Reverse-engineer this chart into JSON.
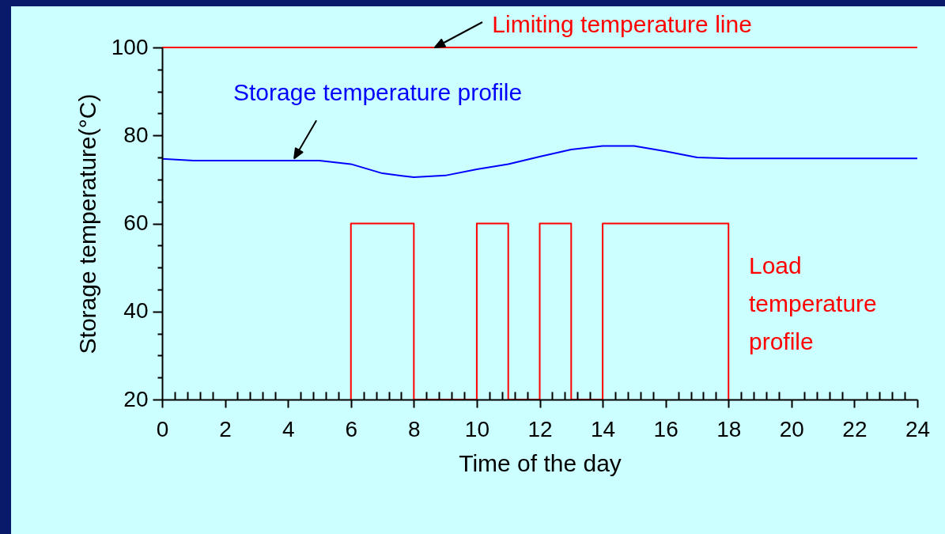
{
  "chart_data": {
    "type": "line",
    "xlabel": "Time of the day",
    "ylabel": "Storage temperature(°C)",
    "xlim": [
      0,
      24
    ],
    "ylim": [
      20,
      100
    ],
    "xticks": [
      0,
      {
        "value": 0.4,
        "label": null
      },
      {
        "value": 0.8,
        "label": null
      },
      {
        "value": 1.2,
        "label": null
      },
      {
        "value": 1.6,
        "label": null
      },
      2,
      {
        "value": 2.4,
        "label": null
      },
      {
        "value": 2.8,
        "label": null
      },
      {
        "value": 3.2,
        "label": null
      },
      {
        "value": 3.6,
        "label": null
      },
      4,
      {
        "value": 4.4,
        "label": null
      },
      {
        "value": 4.8,
        "label": null
      },
      {
        "value": 5.2,
        "label": null
      },
      {
        "value": 5.6,
        "label": null
      },
      6,
      {
        "value": 6.4,
        "label": null
      },
      {
        "value": 6.8,
        "label": null
      },
      {
        "value": 7.2,
        "label": null
      },
      {
        "value": 7.6,
        "label": null
      },
      8,
      {
        "value": 8.4,
        "label": null
      },
      {
        "value": 8.8,
        "label": null
      },
      {
        "value": 9.2,
        "label": null
      },
      {
        "value": 9.6,
        "label": null
      },
      10,
      {
        "value": 10.4,
        "label": null
      },
      {
        "value": 10.8,
        "label": null
      },
      {
        "value": 11.2,
        "label": null
      },
      {
        "value": 11.6,
        "label": null
      },
      12,
      {
        "value": 12.4,
        "label": null
      },
      {
        "value": 12.8,
        "label": null
      },
      {
        "value": 13.2,
        "label": null
      },
      {
        "value": 13.6,
        "label": null
      },
      14,
      {
        "value": 14.4,
        "label": null
      },
      {
        "value": 14.8,
        "label": null
      },
      {
        "value": 15.2,
        "label": null
      },
      {
        "value": 15.6,
        "label": null
      },
      16,
      {
        "value": 16.4,
        "label": null
      },
      {
        "value": 16.8,
        "label": null
      },
      {
        "value": 17.2,
        "label": null
      },
      {
        "value": 17.6,
        "label": null
      },
      18,
      {
        "value": 18.4,
        "label": null
      },
      {
        "value": 18.8,
        "label": null
      },
      {
        "value": 19.2,
        "label": null
      },
      {
        "value": 19.6,
        "label": null
      },
      20,
      {
        "value": 20.4,
        "label": null
      },
      {
        "value": 20.8,
        "label": null
      },
      {
        "value": 21.2,
        "label": null
      },
      {
        "value": 21.6,
        "label": null
      },
      22,
      {
        "value": 22.4,
        "label": null
      },
      {
        "value": 22.8,
        "label": null
      },
      {
        "value": 23.2,
        "label": null
      },
      {
        "value": 23.6,
        "label": null
      },
      24
    ],
    "yticks": [
      20,
      {
        "value": 25,
        "label": null
      },
      {
        "value": 30,
        "label": null
      },
      {
        "value": 35,
        "label": null
      },
      40,
      {
        "value": 45,
        "label": null
      },
      {
        "value": 50,
        "label": null
      },
      {
        "value": 55,
        "label": null
      },
      60,
      {
        "value": 65,
        "label": null
      },
      {
        "value": 70,
        "label": null
      },
      {
        "value": 75,
        "label": null
      },
      80,
      {
        "value": 85,
        "label": null
      },
      {
        "value": 90,
        "label": null
      },
      {
        "value": 95,
        "label": null
      },
      100
    ],
    "grid": false,
    "marker": "none",
    "line_style": "solid",
    "series": [
      {
        "name": "Storage temperature profile",
        "color": "#0000ff",
        "x": [
          0,
          1,
          2,
          3,
          4,
          5,
          6,
          7,
          8,
          9,
          10,
          11,
          12,
          13,
          14,
          15,
          16,
          17,
          18,
          19,
          20,
          21,
          22,
          23,
          24
        ],
        "values": [
          74.7,
          74.3,
          74.3,
          74.3,
          74.3,
          74.3,
          73.5,
          71.4,
          70.5,
          70.9,
          72.3,
          73.5,
          75.2,
          76.8,
          77.6,
          77.6,
          76.4,
          75.0,
          74.8,
          74.8,
          74.8,
          74.8,
          74.8,
          74.8,
          74.8
        ]
      },
      {
        "name": "Load temperature profile",
        "color": "#ff0000",
        "type": "step",
        "x": [
          6,
          6,
          8,
          10,
          11,
          12,
          13,
          14,
          18
        ],
        "values": [
          20,
          60,
          20,
          60,
          20,
          60,
          20,
          60,
          20
        ]
      }
    ],
    "ref_lines": [
      {
        "axis": "y",
        "value": 100,
        "label": "Limiting temperature line",
        "color": "#ff0000"
      }
    ]
  }
}
